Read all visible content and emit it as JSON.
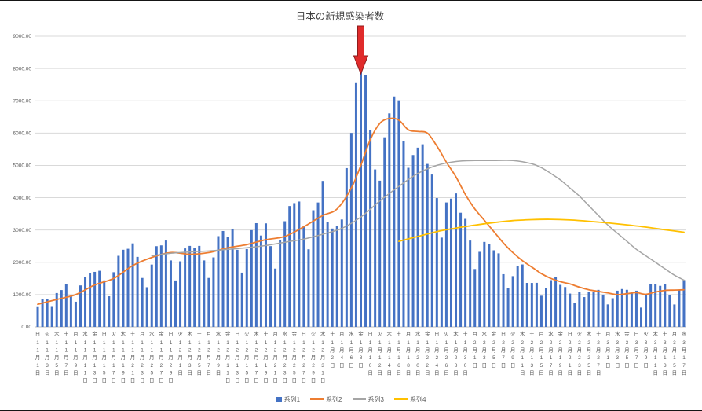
{
  "title": "日本の新規感染者数",
  "legend": [
    {
      "label": "系列1",
      "color": "#4472C4",
      "marker": "square"
    },
    {
      "label": "系列2",
      "color": "#ED7D31",
      "marker": "line"
    },
    {
      "label": "系列3",
      "color": "#A5A5A5",
      "marker": "line"
    },
    {
      "label": "系列4",
      "color": "#FFC000",
      "marker": "line"
    }
  ],
  "chart_data": {
    "type": "bar",
    "title": "日本の新規感染者数",
    "grid": "horizontal",
    "legend_position": "bottom",
    "tick_interval": 2,
    "y_axis": {
      "min": 0,
      "max": 9000,
      "step": 1000,
      "tick_labels": [
        "9000.00",
        "8000.00",
        "7000.00",
        "6000.00",
        "5000.00",
        "4000.00",
        "3000.00",
        "2000.00",
        "1000.00",
        "0.00"
      ]
    },
    "x_ticks": [
      [
        "日",
        "11月1日"
      ],
      [
        "火",
        "11月3日"
      ],
      [
        "木",
        "11月5日"
      ],
      [
        "土",
        "11月7日"
      ],
      [
        "月",
        "11月9日"
      ],
      [
        "水",
        "11月11日"
      ],
      [
        "金",
        "11月13日"
      ],
      [
        "日",
        "11月15日"
      ],
      [
        "火",
        "11月17日"
      ],
      [
        "木",
        "11月19日"
      ],
      [
        "土",
        "11月21日"
      ],
      [
        "月",
        "11月23日"
      ],
      [
        "水",
        "11月25日"
      ],
      [
        "金",
        "11月27日"
      ],
      [
        "日",
        "11月29日"
      ],
      [
        "火",
        "12月1日"
      ],
      [
        "木",
        "12月3日"
      ],
      [
        "土",
        "12月5日"
      ],
      [
        "月",
        "12月7日"
      ],
      [
        "水",
        "12月9日"
      ],
      [
        "金",
        "12月11日"
      ],
      [
        "日",
        "12月13日"
      ],
      [
        "火",
        "12月15日"
      ],
      [
        "木",
        "12月17日"
      ],
      [
        "土",
        "12月19日"
      ],
      [
        "月",
        "12月21日"
      ],
      [
        "水",
        "12月23日"
      ],
      [
        "金",
        "12月25日"
      ],
      [
        "日",
        "12月27日"
      ],
      [
        "火",
        "12月29日"
      ],
      [
        "木",
        "12月31日"
      ],
      [
        "土",
        "1月2日"
      ],
      [
        "月",
        "1月4日"
      ],
      [
        "水",
        "1月6日"
      ],
      [
        "金",
        "1月8日"
      ],
      [
        "日",
        "1月10日"
      ],
      [
        "火",
        "1月12日"
      ],
      [
        "木",
        "1月14日"
      ],
      [
        "土",
        "1月16日"
      ],
      [
        "月",
        "1月18日"
      ],
      [
        "水",
        "1月20日"
      ],
      [
        "金",
        "1月22日"
      ],
      [
        "日",
        "1月24日"
      ],
      [
        "火",
        "1月26日"
      ],
      [
        "木",
        "1月28日"
      ],
      [
        "土",
        "1月30日"
      ],
      [
        "月",
        "2月1日"
      ],
      [
        "水",
        "2月3日"
      ],
      [
        "金",
        "2月5日"
      ],
      [
        "日",
        "2月7日"
      ],
      [
        "火",
        "2月9日"
      ],
      [
        "木",
        "2月11日"
      ],
      [
        "土",
        "2月13日"
      ],
      [
        "月",
        "2月15日"
      ],
      [
        "水",
        "2月17日"
      ],
      [
        "金",
        "2月19日"
      ],
      [
        "日",
        "2月21日"
      ],
      [
        "火",
        "2月23日"
      ],
      [
        "木",
        "2月25日"
      ],
      [
        "土",
        "2月27日"
      ],
      [
        "月",
        "3月1日"
      ],
      [
        "水",
        "3月3日"
      ],
      [
        "金",
        "3月5日"
      ],
      [
        "日",
        "3月7日"
      ],
      [
        "火",
        "3月9日"
      ],
      [
        "木",
        "3月11日"
      ],
      [
        "土",
        "3月13日"
      ],
      [
        "月",
        "3月15日"
      ],
      [
        "水",
        "3月17日"
      ]
    ],
    "bar_series": {
      "name": "系列1",
      "color": "#4472C4",
      "values": [
        614,
        871,
        867,
        620,
        1048,
        1141,
        1331,
        957,
        780,
        1284,
        1543,
        1660,
        1704,
        1737,
        1440,
        948,
        1693,
        2201,
        2388,
        2418,
        2586,
        2168,
        1515,
        1229,
        1930,
        2499,
        2524,
        2674,
        2058,
        1438,
        2030,
        2430,
        2508,
        2442,
        2508,
        2058,
        1515,
        2152,
        2810,
        2968,
        2790,
        3041,
        2387,
        1680,
        2410,
        2994,
        3211,
        2829,
        3205,
        2501,
        1806,
        2688,
        3271,
        3742,
        3832,
        3881,
        3127,
        2403,
        3612,
        3852,
        4520,
        3246,
        3045,
        3127,
        3325,
        4915,
        6004,
        7570,
        7882,
        7790,
        6096,
        4875,
        4527,
        5870,
        6609,
        7133,
        7014,
        5759,
        4925,
        5321,
        5549,
        5653,
        5045,
        4717,
        3988,
        2764,
        3853,
        3971,
        4132,
        3534,
        3344,
        2673,
        1792,
        2324,
        2631,
        2576,
        2372,
        2277,
        1631,
        1216,
        1571,
        1887,
        1933,
        1362,
        1361,
        1364,
        965,
        1194,
        1448,
        1536,
        1301,
        1234,
        1032,
        741,
        1084,
        923,
        1076,
        1083,
        1147,
        999,
        697,
        888,
        1121,
        1173,
        1148,
        1066,
        1121,
        599,
        974,
        1317,
        1316,
        1271,
        1320,
        989,
        695,
        1133,
        1449
      ]
    },
    "line_series": [
      {
        "name": "系列2",
        "color": "#ED7D31",
        "points": [
          [
            0,
            700
          ],
          [
            4,
            850
          ],
          [
            8,
            1000
          ],
          [
            12,
            1300
          ],
          [
            16,
            1500
          ],
          [
            20,
            1900
          ],
          [
            24,
            2150
          ],
          [
            28,
            2300
          ],
          [
            32,
            2250
          ],
          [
            36,
            2300
          ],
          [
            40,
            2450
          ],
          [
            44,
            2550
          ],
          [
            48,
            2700
          ],
          [
            52,
            2800
          ],
          [
            56,
            3100
          ],
          [
            60,
            3450
          ],
          [
            63,
            3650
          ],
          [
            66,
            4300
          ],
          [
            68,
            5000
          ],
          [
            70,
            5800
          ],
          [
            72,
            6300
          ],
          [
            74,
            6450
          ],
          [
            76,
            6400
          ],
          [
            78,
            6100
          ],
          [
            80,
            6050
          ],
          [
            82,
            6000
          ],
          [
            84,
            5600
          ],
          [
            86,
            5100
          ],
          [
            88,
            4650
          ],
          [
            90,
            4100
          ],
          [
            92,
            3650
          ],
          [
            94,
            3300
          ],
          [
            96,
            2950
          ],
          [
            98,
            2600
          ],
          [
            100,
            2300
          ],
          [
            102,
            2050
          ],
          [
            104,
            1850
          ],
          [
            106,
            1650
          ],
          [
            108,
            1500
          ],
          [
            110,
            1400
          ],
          [
            112,
            1330
          ],
          [
            114,
            1230
          ],
          [
            116,
            1150
          ],
          [
            118,
            1100
          ],
          [
            120,
            1050
          ],
          [
            122,
            1000
          ],
          [
            124,
            1030
          ],
          [
            126,
            1060
          ],
          [
            128,
            1010
          ],
          [
            130,
            1080
          ],
          [
            132,
            1130
          ],
          [
            134,
            1140
          ],
          [
            136,
            1150
          ]
        ]
      },
      {
        "name": "系列3",
        "color": "#A5A5A5",
        "points": [
          [
            24,
            2200
          ],
          [
            28,
            2280
          ],
          [
            32,
            2320
          ],
          [
            36,
            2350
          ],
          [
            40,
            2400
          ],
          [
            44,
            2450
          ],
          [
            48,
            2520
          ],
          [
            52,
            2620
          ],
          [
            56,
            2720
          ],
          [
            60,
            2870
          ],
          [
            64,
            3050
          ],
          [
            68,
            3400
          ],
          [
            72,
            3900
          ],
          [
            76,
            4350
          ],
          [
            80,
            4750
          ],
          [
            84,
            5000
          ],
          [
            88,
            5120
          ],
          [
            92,
            5150
          ],
          [
            96,
            5150
          ],
          [
            100,
            5150
          ],
          [
            104,
            5050
          ],
          [
            106,
            4930
          ],
          [
            108,
            4750
          ],
          [
            110,
            4550
          ],
          [
            112,
            4300
          ],
          [
            114,
            4050
          ],
          [
            116,
            3750
          ],
          [
            118,
            3450
          ],
          [
            120,
            3150
          ],
          [
            122,
            2900
          ],
          [
            124,
            2650
          ],
          [
            126,
            2400
          ],
          [
            128,
            2200
          ],
          [
            130,
            2000
          ],
          [
            132,
            1800
          ],
          [
            134,
            1600
          ],
          [
            136,
            1450
          ]
        ]
      },
      {
        "name": "系列4",
        "color": "#FFC000",
        "points": [
          [
            76,
            2650
          ],
          [
            80,
            2800
          ],
          [
            84,
            2950
          ],
          [
            88,
            3060
          ],
          [
            92,
            3150
          ],
          [
            96,
            3230
          ],
          [
            100,
            3290
          ],
          [
            104,
            3320
          ],
          [
            108,
            3330
          ],
          [
            112,
            3310
          ],
          [
            116,
            3270
          ],
          [
            120,
            3220
          ],
          [
            124,
            3160
          ],
          [
            128,
            3090
          ],
          [
            132,
            3010
          ],
          [
            136,
            2930
          ]
        ]
      }
    ],
    "annotation": {
      "shape": "down-arrow",
      "fill": "#e02b2b",
      "stroke": "#8f1b1b",
      "x_index": 68
    }
  }
}
